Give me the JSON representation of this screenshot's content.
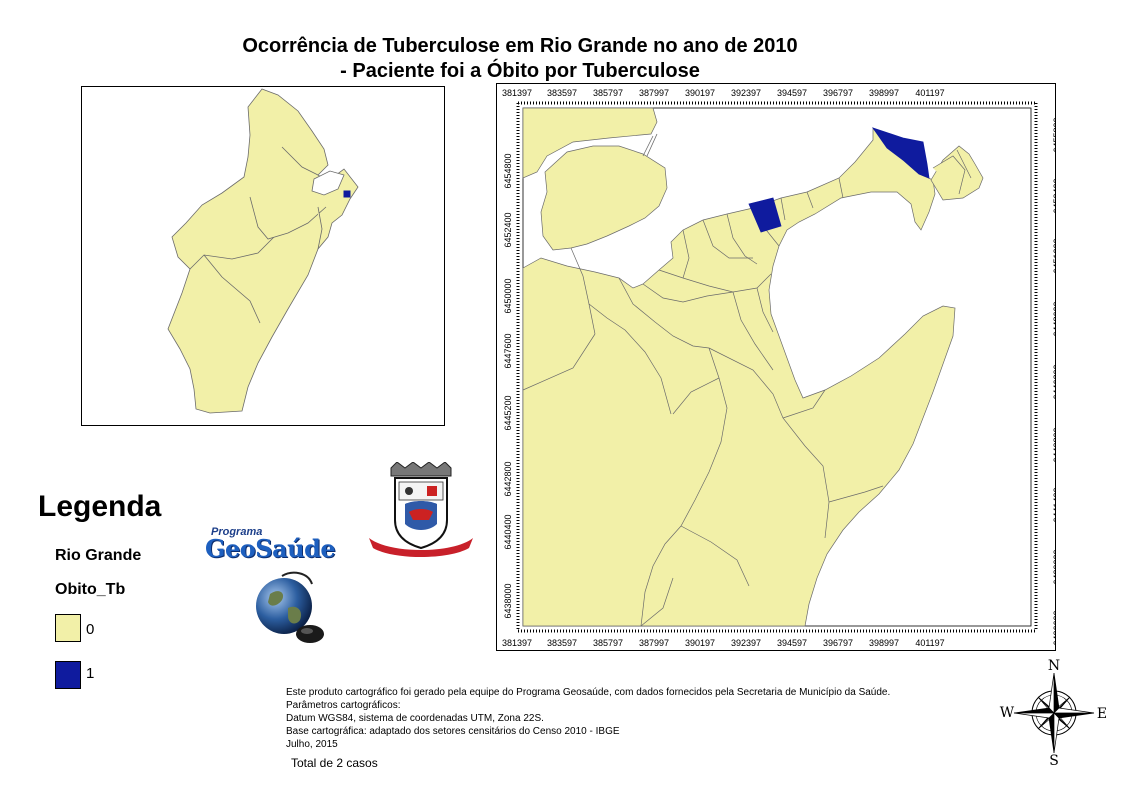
{
  "title": {
    "line1": "Ocorrência de Tuberculose em Rio Grande no ano de 2010",
    "line2": "- Paciente foi a Óbito por Tuberculose"
  },
  "legend": {
    "heading": "Legenda",
    "layer": "Rio Grande",
    "field": "Obito_Tb",
    "classes": [
      {
        "label": "0",
        "color": "#f2f0a8"
      },
      {
        "label": "1",
        "color": "#0f1b9e"
      }
    ]
  },
  "logos": {
    "geosaude_small": "Programa",
    "geosaude_big": "GeoSaúde"
  },
  "map_grid": {
    "x_ticks": [
      "381397",
      "383597",
      "385797",
      "387997",
      "390197",
      "392397",
      "394597",
      "396797",
      "398997",
      "401197"
    ],
    "y_ticks_left": [
      "6438000",
      "6440400",
      "6442800",
      "6445200",
      "6447600",
      "6450000",
      "6452400",
      "6454800"
    ],
    "y_ticks_right": [
      "6436600",
      "6439000",
      "6441400",
      "6443800",
      "6446200",
      "6448600",
      "6451000",
      "6453400",
      "6455800"
    ]
  },
  "colors": {
    "polygon_fill": "#f2f0a8",
    "highlight_fill": "#0f1b9e",
    "outline": "#6b6b6b"
  },
  "notes": [
    "Este produto cartográfico foi gerado pela equipe do Programa Geosaúde, com dados fornecidos pela Secretaria de Município da Saúde.",
    "Parâmetros cartográficos:",
    "Datum WGS84, sistema de coordenadas UTM, Zona 22S.",
    "Base cartográfica: adaptado dos setores censitários do Censo 2010 - IBGE",
    "Julho, 2015"
  ],
  "total": "Total de 2 casos",
  "compass": {
    "n": "N",
    "s": "S",
    "e": "E",
    "w": "W"
  }
}
